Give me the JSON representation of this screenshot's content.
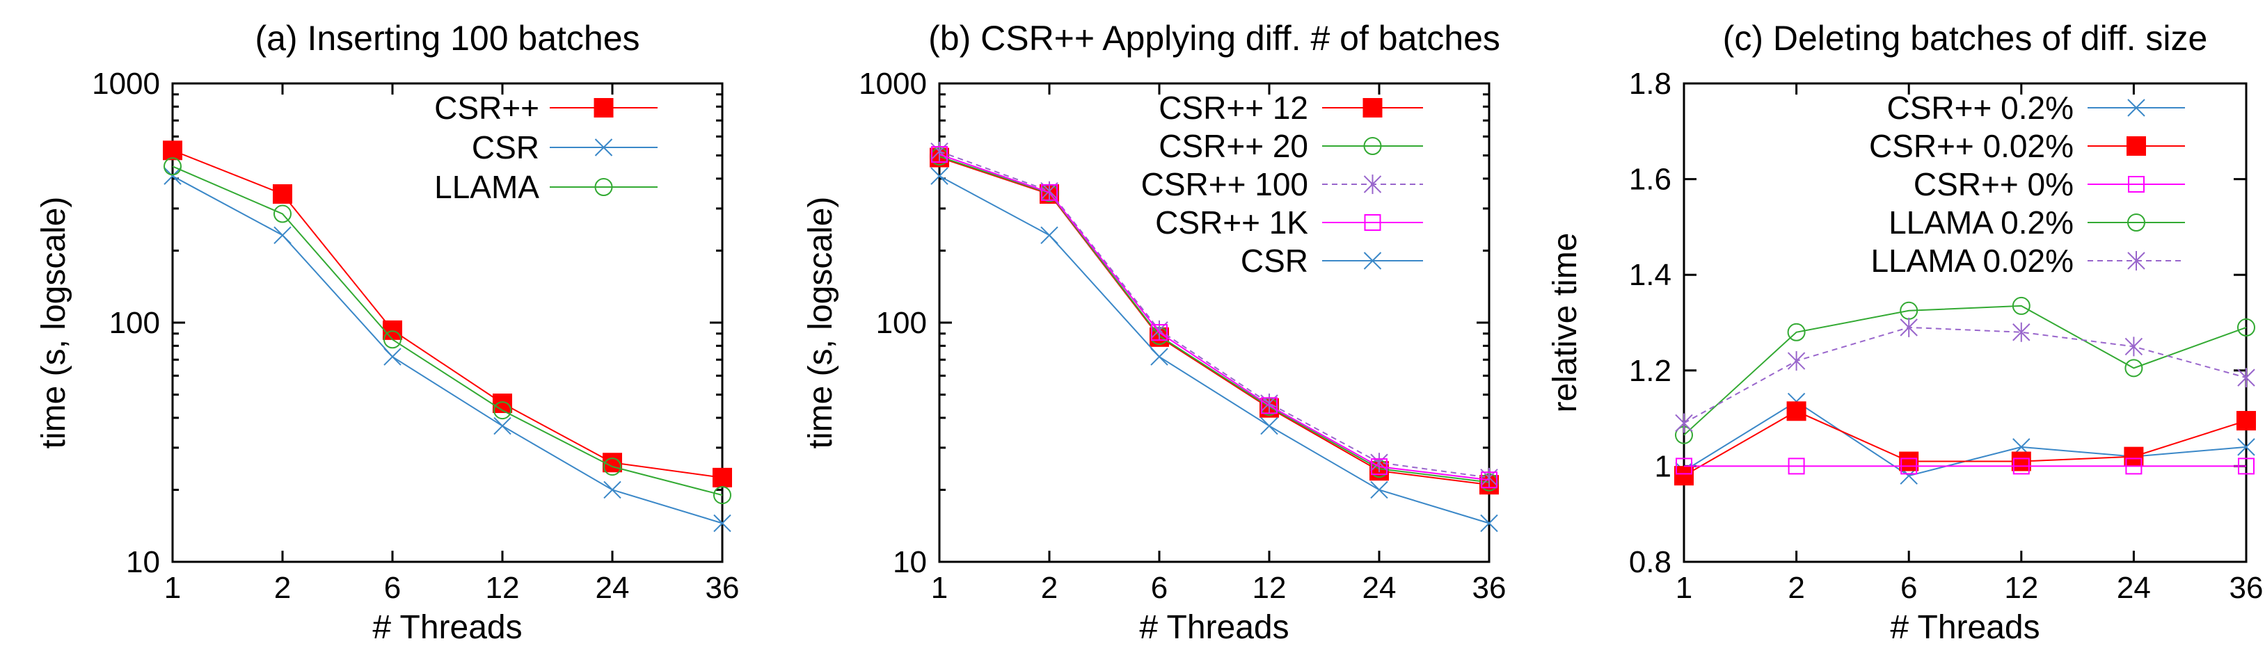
{
  "chart_data": [
    {
      "type": "line",
      "title": "(a) Inserting 100 batches",
      "xlabel": "# Threads",
      "ylabel": "time (s, logscale)",
      "yscale": "log",
      "ylim": [
        10,
        1000
      ],
      "yticks": [
        "10",
        "100",
        "1000"
      ],
      "categories": [
        "1",
        "2",
        "6",
        "12",
        "24",
        "36"
      ],
      "legend_position": "top-right",
      "series": [
        {
          "name": "CSR++",
          "color": "#ff0000",
          "marker": "filled-square",
          "dash": "",
          "values": [
            525,
            345,
            93,
            46,
            26,
            22.5
          ]
        },
        {
          "name": "CSR",
          "color": "#3b88c8",
          "marker": "x",
          "dash": "",
          "values": [
            410,
            232,
            72,
            37,
            20,
            14.5
          ]
        },
        {
          "name": "LLAMA",
          "color": "#33aa33",
          "marker": "circle",
          "dash": "",
          "values": [
            450,
            285,
            85,
            43,
            25,
            19
          ]
        }
      ]
    },
    {
      "type": "line",
      "title": "(b) CSR++ Applying diff. # of batches",
      "xlabel": "# Threads",
      "ylabel": "time (s, logscale)",
      "yscale": "log",
      "ylim": [
        10,
        1000
      ],
      "yticks": [
        "10",
        "100",
        "1000"
      ],
      "categories": [
        "1",
        "2",
        "6",
        "12",
        "24",
        "36"
      ],
      "legend_position": "top-right",
      "series": [
        {
          "name": "CSR++ 12",
          "color": "#ff0000",
          "marker": "filled-square",
          "dash": "",
          "values": [
            490,
            345,
            87,
            44,
            24,
            21
          ]
        },
        {
          "name": "CSR++ 20",
          "color": "#33aa33",
          "marker": "circle",
          "dash": "",
          "values": [
            495,
            348,
            88,
            44.5,
            24.5,
            21.5
          ]
        },
        {
          "name": "CSR++ 100",
          "color": "#9966cc",
          "marker": "star",
          "dash": "8,6",
          "values": [
            520,
            355,
            93,
            46,
            26,
            22.5
          ]
        },
        {
          "name": "CSR++ 1K",
          "color": "#ff00ff",
          "marker": "square",
          "dash": "",
          "values": [
            505,
            350,
            91,
            45,
            25,
            22
          ]
        },
        {
          "name": "CSR",
          "color": "#3b88c8",
          "marker": "x",
          "dash": "",
          "values": [
            410,
            232,
            72,
            37,
            20,
            14.5
          ]
        }
      ]
    },
    {
      "type": "line",
      "title": "(c) Deleting batches of diff. size",
      "xlabel": "# Threads",
      "ylabel": "relative time",
      "yscale": "linear",
      "ylim": [
        0.8,
        1.8
      ],
      "yticks": [
        "0.8",
        "1",
        "1.2",
        "1.4",
        "1.6",
        "1.8"
      ],
      "categories": [
        "1",
        "2",
        "6",
        "12",
        "24",
        "36"
      ],
      "legend_position": "top-right",
      "series": [
        {
          "name": "CSR++ 0.2%",
          "color": "#3b88c8",
          "marker": "x",
          "dash": "",
          "values": [
            0.99,
            1.135,
            0.98,
            1.04,
            1.02,
            1.04
          ]
        },
        {
          "name": "CSR++ 0.02%",
          "color": "#ff0000",
          "marker": "filled-square",
          "dash": "",
          "values": [
            0.98,
            1.115,
            1.01,
            1.01,
            1.02,
            1.095
          ]
        },
        {
          "name": "CSR++ 0%",
          "color": "#ff00ff",
          "marker": "square",
          "dash": "",
          "values": [
            1.0,
            1.0,
            1.0,
            1.0,
            1.0,
            1.0
          ]
        },
        {
          "name": "LLAMA 0.2%",
          "color": "#33aa33",
          "marker": "circle",
          "dash": "",
          "values": [
            1.065,
            1.28,
            1.325,
            1.335,
            1.205,
            1.29
          ]
        },
        {
          "name": "LLAMA 0.02%",
          "color": "#9966cc",
          "marker": "star",
          "dash": "8,6",
          "values": [
            1.09,
            1.22,
            1.29,
            1.28,
            1.25,
            1.185
          ]
        }
      ]
    }
  ]
}
